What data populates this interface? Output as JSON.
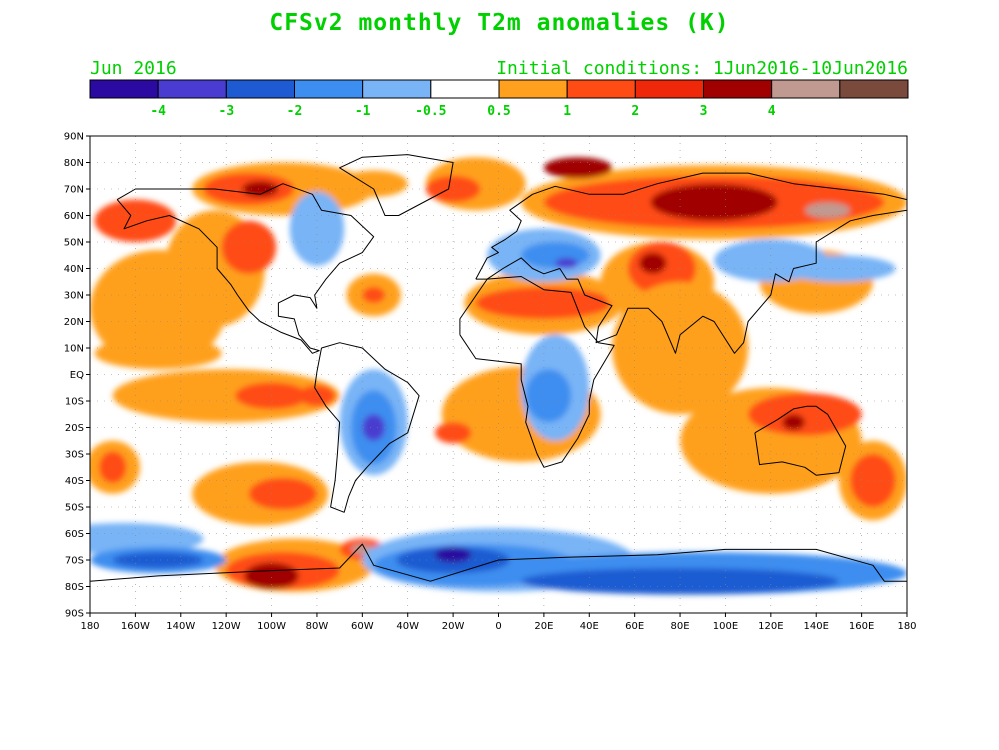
{
  "title": "CFSv2 monthly T2m anomalies (K)",
  "subtitle_left": "Jun 2016",
  "subtitle_right": "Initial conditions: 1Jun2016-10Jun2016",
  "text_color": "#00d000",
  "colorbar": {
    "colors": [
      "#2a0aa0",
      "#4a3cd0",
      "#1e5bd2",
      "#3c8ef0",
      "#78b4f6",
      "#ffffff",
      "#ffa01e",
      "#ff4b14",
      "#f0280a",
      "#a00000",
      "#c09a90",
      "#7a4a3c"
    ],
    "labels": [
      "-4",
      "-3",
      "-2",
      "-1",
      "-0.5",
      "0.5",
      "1",
      "2",
      "3",
      "4"
    ]
  },
  "lat_labels": [
    "90N",
    "80N",
    "70N",
    "60N",
    "50N",
    "40N",
    "30N",
    "20N",
    "10N",
    "EQ",
    "10S",
    "20S",
    "30S",
    "40S",
    "50S",
    "60S",
    "70S",
    "80S",
    "90S"
  ],
  "lon_labels": [
    "180",
    "160W",
    "140W",
    "120W",
    "100W",
    "80W",
    "60W",
    "40W",
    "20W",
    "0",
    "20E",
    "40E",
    "60E",
    "80E",
    "100E",
    "120E",
    "140E",
    "160E",
    "180"
  ],
  "map": {
    "extent": {
      "lon": [
        -180,
        180
      ],
      "lat": [
        -90,
        90
      ]
    },
    "colors": {
      "strong_cold": "#2a0aa0",
      "cold4": "#4a3cd0",
      "cold3": "#1e5bd2",
      "cold2": "#3c8ef0",
      "cold1": "#78b4f6",
      "warm1": "#ffa01e",
      "warm2": "#ff4b14",
      "warm3": "#a00000",
      "warm4": "#c09a90",
      "warm5": "#7a4a3c"
    },
    "anomaly_regions": [
      {
        "level": "warm1",
        "lon": -150,
        "lat": 25,
        "rx": 30,
        "ry": 22
      },
      {
        "level": "warm1",
        "lon": -125,
        "lat": 40,
        "rx": 22,
        "ry": 22
      },
      {
        "level": "warm2",
        "lon": -160,
        "lat": 58,
        "rx": 18,
        "ry": 8
      },
      {
        "level": "warm2",
        "lon": -110,
        "lat": 48,
        "rx": 12,
        "ry": 10
      },
      {
        "level": "warm1",
        "lon": -150,
        "lat": 8,
        "rx": 28,
        "ry": 6
      },
      {
        "level": "warm1",
        "lon": -120,
        "lat": -8,
        "rx": 50,
        "ry": 10
      },
      {
        "level": "warm2",
        "lon": -100,
        "lat": -8,
        "rx": 16,
        "ry": 5
      },
      {
        "level": "warm2",
        "lon": -80,
        "lat": -8,
        "rx": 8,
        "ry": 4
      },
      {
        "level": "warm1",
        "lon": -170,
        "lat": -35,
        "rx": 12,
        "ry": 10
      },
      {
        "level": "warm2",
        "lon": -170,
        "lat": -35,
        "rx": 6,
        "ry": 6
      },
      {
        "level": "warm1",
        "lon": -105,
        "lat": -45,
        "rx": 30,
        "ry": 12
      },
      {
        "level": "warm2",
        "lon": -95,
        "lat": -45,
        "rx": 15,
        "ry": 6
      },
      {
        "level": "warm1",
        "lon": -90,
        "lat": -72,
        "rx": 35,
        "ry": 10
      },
      {
        "level": "warm2",
        "lon": -95,
        "lat": -74,
        "rx": 25,
        "ry": 7
      },
      {
        "level": "warm3",
        "lon": -100,
        "lat": -76,
        "rx": 12,
        "ry": 5
      },
      {
        "level": "warm2",
        "lon": -60,
        "lat": -66,
        "rx": 10,
        "ry": 4
      },
      {
        "level": "warm4",
        "lon": -60,
        "lat": -66,
        "rx": 5,
        "ry": 2
      },
      {
        "level": "warm1",
        "lon": -95,
        "lat": 70,
        "rx": 40,
        "ry": 10
      },
      {
        "level": "warm2",
        "lon": -110,
        "lat": 70,
        "rx": 20,
        "ry": 6
      },
      {
        "level": "warm3",
        "lon": -105,
        "lat": 70,
        "rx": 8,
        "ry": 3
      },
      {
        "level": "warm1",
        "lon": -55,
        "lat": 72,
        "rx": 15,
        "ry": 5
      },
      {
        "level": "warm1",
        "lon": -55,
        "lat": 30,
        "rx": 12,
        "ry": 8
      },
      {
        "level": "warm2",
        "lon": -55,
        "lat": 30,
        "rx": 5,
        "ry": 3
      },
      {
        "level": "warm1",
        "lon": -10,
        "lat": 72,
        "rx": 22,
        "ry": 10
      },
      {
        "level": "warm2",
        "lon": -20,
        "lat": 70,
        "rx": 12,
        "ry": 5
      },
      {
        "level": "warm1",
        "lon": 95,
        "lat": 65,
        "rx": 85,
        "ry": 14
      },
      {
        "level": "warm2",
        "lon": 95,
        "lat": 65,
        "rx": 75,
        "ry": 10
      },
      {
        "level": "warm3",
        "lon": 95,
        "lat": 65,
        "rx": 28,
        "ry": 7
      },
      {
        "level": "warm4",
        "lon": 145,
        "lat": 62,
        "rx": 10,
        "ry": 3
      },
      {
        "level": "warm3",
        "lon": 35,
        "lat": 78,
        "rx": 15,
        "ry": 4
      },
      {
        "level": "warm1",
        "lon": 20,
        "lat": 27,
        "rx": 35,
        "ry": 12
      },
      {
        "level": "warm2",
        "lon": 20,
        "lat": 27,
        "rx": 30,
        "ry": 6
      },
      {
        "level": "warm1",
        "lon": 70,
        "lat": 35,
        "rx": 25,
        "ry": 15
      },
      {
        "level": "warm2",
        "lon": 72,
        "lat": 40,
        "rx": 15,
        "ry": 10
      },
      {
        "level": "warm3",
        "lon": 68,
        "lat": 42,
        "rx": 6,
        "ry": 4
      },
      {
        "level": "warm1",
        "lon": 80,
        "lat": 10,
        "rx": 30,
        "ry": 25
      },
      {
        "level": "warm1",
        "lon": 120,
        "lat": -25,
        "rx": 40,
        "ry": 20
      },
      {
        "level": "warm2",
        "lon": 135,
        "lat": -15,
        "rx": 25,
        "ry": 8
      },
      {
        "level": "warm3",
        "lon": 130,
        "lat": -18,
        "rx": 5,
        "ry": 3
      },
      {
        "level": "warm1",
        "lon": 165,
        "lat": -40,
        "rx": 15,
        "ry": 15
      },
      {
        "level": "warm2",
        "lon": 165,
        "lat": -40,
        "rx": 10,
        "ry": 10
      },
      {
        "level": "warm1",
        "lon": 10,
        "lat": -15,
        "rx": 35,
        "ry": 18
      },
      {
        "level": "warm2",
        "lon": -20,
        "lat": -22,
        "rx": 8,
        "ry": 4
      },
      {
        "level": "warm1",
        "lon": 140,
        "lat": 35,
        "rx": 25,
        "ry": 12
      },
      {
        "level": "cold1",
        "lon": 20,
        "lat": 45,
        "rx": 25,
        "ry": 10
      },
      {
        "level": "cold2",
        "lon": 25,
        "lat": 45,
        "rx": 15,
        "ry": 5
      },
      {
        "level": "cold4",
        "lon": 30,
        "lat": 42,
        "rx": 5,
        "ry": 2
      },
      {
        "level": "cold1",
        "lon": 120,
        "lat": 43,
        "rx": 25,
        "ry": 8
      },
      {
        "level": "cold1",
        "lon": 25,
        "lat": -5,
        "rx": 15,
        "ry": 20
      },
      {
        "level": "cold2",
        "lon": 22,
        "lat": -8,
        "rx": 10,
        "ry": 10
      },
      {
        "level": "cold1",
        "lon": -55,
        "lat": -18,
        "rx": 15,
        "ry": 20
      },
      {
        "level": "cold2",
        "lon": -55,
        "lat": -20,
        "rx": 10,
        "ry": 14
      },
      {
        "level": "cold4",
        "lon": -55,
        "lat": -20,
        "rx": 5,
        "ry": 5
      },
      {
        "level": "cold1",
        "lon": -80,
        "lat": 55,
        "rx": 12,
        "ry": 14
      },
      {
        "level": "cold1",
        "lon": -165,
        "lat": -62,
        "rx": 35,
        "ry": 6
      },
      {
        "level": "cold2",
        "lon": -150,
        "lat": -70,
        "rx": 30,
        "ry": 5
      },
      {
        "level": "cold3",
        "lon": -150,
        "lat": -70,
        "rx": 20,
        "ry": 3
      },
      {
        "level": "cold1",
        "lon": 0,
        "lat": -70,
        "rx": 60,
        "ry": 12
      },
      {
        "level": "cold2",
        "lon": -10,
        "lat": -72,
        "rx": 45,
        "ry": 8
      },
      {
        "level": "cold3",
        "lon": -20,
        "lat": -70,
        "rx": 25,
        "ry": 5
      },
      {
        "level": "strong_cold",
        "lon": -20,
        "lat": -68,
        "rx": 8,
        "ry": 3
      },
      {
        "level": "cold2",
        "lon": 90,
        "lat": -75,
        "rx": 90,
        "ry": 8
      },
      {
        "level": "cold3",
        "lon": 80,
        "lat": -78,
        "rx": 70,
        "ry": 5
      },
      {
        "level": "cold1",
        "lon": 150,
        "lat": 40,
        "rx": 25,
        "ry": 5
      }
    ],
    "land_outlines": [
      [
        [
          -168,
          66
        ],
        [
          -160,
          70
        ],
        [
          -140,
          70
        ],
        [
          -125,
          70
        ],
        [
          -105,
          68
        ],
        [
          -95,
          72
        ],
        [
          -82,
          68
        ],
        [
          -78,
          62
        ],
        [
          -65,
          60
        ],
        [
          -55,
          52
        ],
        [
          -60,
          46
        ],
        [
          -70,
          42
        ],
        [
          -76,
          36
        ],
        [
          -81,
          30
        ],
        [
          -80,
          25
        ],
        [
          -83,
          29
        ],
        [
          -90,
          30
        ],
        [
          -97,
          27
        ],
        [
          -97,
          22
        ],
        [
          -90,
          21
        ],
        [
          -88,
          15
        ],
        [
          -83,
          10
        ],
        [
          -79,
          9
        ],
        [
          -82,
          8
        ],
        [
          -87,
          13
        ],
        [
          -96,
          16
        ],
        [
          -105,
          20
        ],
        [
          -110,
          24
        ],
        [
          -115,
          30
        ],
        [
          -118,
          34
        ],
        [
          -124,
          40
        ],
        [
          -124,
          48
        ],
        [
          -132,
          55
        ],
        [
          -145,
          60
        ],
        [
          -155,
          58
        ],
        [
          -165,
          55
        ],
        [
          -162,
          60
        ],
        [
          -168,
          66
        ]
      ],
      [
        [
          -78,
          10
        ],
        [
          -70,
          12
        ],
        [
          -60,
          10
        ],
        [
          -50,
          2
        ],
        [
          -40,
          -3
        ],
        [
          -35,
          -8
        ],
        [
          -40,
          -22
        ],
        [
          -48,
          -26
        ],
        [
          -58,
          -35
        ],
        [
          -63,
          -40
        ],
        [
          -66,
          -46
        ],
        [
          -68,
          -52
        ],
        [
          -74,
          -50
        ],
        [
          -72,
          -40
        ],
        [
          -71,
          -30
        ],
        [
          -70,
          -18
        ],
        [
          -76,
          -12
        ],
        [
          -81,
          -5
        ],
        [
          -80,
          1
        ],
        [
          -78,
          10
        ]
      ],
      [
        [
          -10,
          36
        ],
        [
          -5,
          44
        ],
        [
          0,
          46
        ],
        [
          -3,
          48
        ],
        [
          3,
          51
        ],
        [
          8,
          54
        ],
        [
          10,
          58
        ],
        [
          5,
          62
        ],
        [
          15,
          68
        ],
        [
          25,
          71
        ],
        [
          40,
          68
        ],
        [
          55,
          68
        ],
        [
          70,
          72
        ],
        [
          90,
          76
        ],
        [
          110,
          76
        ],
        [
          130,
          72
        ],
        [
          150,
          70
        ],
        [
          170,
          68
        ],
        [
          180,
          66
        ],
        [
          180,
          62
        ],
        [
          165,
          60
        ],
        [
          155,
          58
        ],
        [
          140,
          50
        ],
        [
          140,
          42
        ],
        [
          130,
          40
        ],
        [
          128,
          35
        ],
        [
          122,
          38
        ],
        [
          120,
          30
        ],
        [
          110,
          20
        ],
        [
          108,
          12
        ],
        [
          104,
          8
        ],
        [
          98,
          16
        ],
        [
          95,
          20
        ],
        [
          90,
          22
        ],
        [
          80,
          15
        ],
        [
          78,
          8
        ],
        [
          72,
          20
        ],
        [
          66,
          25
        ],
        [
          57,
          25
        ],
        [
          52,
          15
        ],
        [
          43,
          12
        ],
        [
          44,
          18
        ],
        [
          50,
          26
        ],
        [
          38,
          30
        ],
        [
          35,
          36
        ],
        [
          30,
          36
        ],
        [
          27,
          40
        ],
        [
          20,
          38
        ],
        [
          15,
          40
        ],
        [
          10,
          44
        ],
        [
          2,
          40
        ],
        [
          -5,
          36
        ],
        [
          -10,
          36
        ]
      ],
      [
        [
          -17,
          15
        ],
        [
          -10,
          6
        ],
        [
          0,
          5
        ],
        [
          10,
          4
        ],
        [
          10,
          -2
        ],
        [
          13,
          -12
        ],
        [
          12,
          -18
        ],
        [
          17,
          -30
        ],
        [
          20,
          -35
        ],
        [
          28,
          -33
        ],
        [
          35,
          -24
        ],
        [
          40,
          -15
        ],
        [
          40,
          -10
        ],
        [
          42,
          -2
        ],
        [
          51,
          11
        ],
        [
          44,
          12
        ],
        [
          38,
          18
        ],
        [
          32,
          31
        ],
        [
          20,
          32
        ],
        [
          10,
          37
        ],
        [
          -5,
          36
        ],
        [
          -17,
          21
        ],
        [
          -17,
          15
        ]
      ],
      [
        [
          113,
          -22
        ],
        [
          115,
          -34
        ],
        [
          125,
          -33
        ],
        [
          135,
          -35
        ],
        [
          140,
          -38
        ],
        [
          150,
          -37
        ],
        [
          153,
          -27
        ],
        [
          145,
          -15
        ],
        [
          140,
          -12
        ],
        [
          136,
          -12
        ],
        [
          130,
          -13
        ],
        [
          123,
          -17
        ],
        [
          113,
          -22
        ]
      ],
      [
        [
          -50,
          60
        ],
        [
          -44,
          60
        ],
        [
          -22,
          70
        ],
        [
          -20,
          80
        ],
        [
          -40,
          83
        ],
        [
          -60,
          82
        ],
        [
          -70,
          78
        ],
        [
          -55,
          70
        ],
        [
          -50,
          60
        ]
      ],
      [
        [
          -180,
          -78
        ],
        [
          -150,
          -76
        ],
        [
          -100,
          -74
        ],
        [
          -70,
          -73
        ],
        [
          -60,
          -64
        ],
        [
          -55,
          -72
        ],
        [
          -30,
          -78
        ],
        [
          0,
          -70
        ],
        [
          30,
          -69
        ],
        [
          70,
          -68
        ],
        [
          100,
          -66
        ],
        [
          140,
          -66
        ],
        [
          165,
          -72
        ],
        [
          170,
          -78
        ],
        [
          180,
          -78
        ]
      ]
    ]
  }
}
